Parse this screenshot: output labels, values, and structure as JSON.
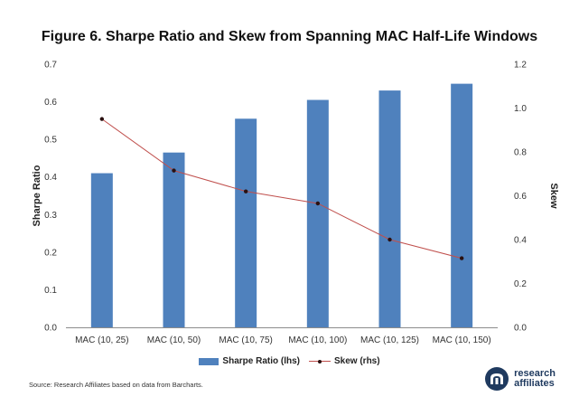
{
  "title": "Figure 6. Sharpe Ratio and Skew from Spanning MAC Half-Life Windows",
  "source": "Source: Research Affiliates based on data from Barcharts.",
  "brand": {
    "line1": "research",
    "line2": "affiliates"
  },
  "legend": {
    "bar": "Sharpe Ratio (lhs)",
    "line": "Skew (rhs)"
  },
  "colors": {
    "bar": "#4f81bd",
    "line": "#c0504d",
    "marker": "#2a1010",
    "brand": "#1f3a5f"
  },
  "chart_data": {
    "type": "bar",
    "categories": [
      "MAC (10, 25)",
      "MAC (10, 50)",
      "MAC (10, 75)",
      "MAC (10, 100)",
      "MAC (10, 125)",
      "MAC (10, 150)"
    ],
    "series": [
      {
        "name": "Sharpe Ratio (lhs)",
        "type": "bar",
        "axis": "left",
        "values": [
          0.41,
          0.465,
          0.555,
          0.605,
          0.63,
          0.648
        ]
      },
      {
        "name": "Skew (rhs)",
        "type": "line",
        "axis": "right",
        "values": [
          0.95,
          0.715,
          0.62,
          0.565,
          0.4,
          0.315
        ]
      }
    ],
    "ylabel": "Sharpe Ratio",
    "y2label": "Skew",
    "ylim": [
      0,
      0.7
    ],
    "y2lim": [
      0,
      1.2
    ],
    "yticks": [
      "0.0",
      "0.1",
      "0.2",
      "0.3",
      "0.4",
      "0.5",
      "0.6",
      "0.7"
    ],
    "y2ticks": [
      "0.0",
      "0.2",
      "0.4",
      "0.6",
      "0.8",
      "1.0",
      "1.2"
    ],
    "grid": false,
    "legend_position": "bottom"
  }
}
